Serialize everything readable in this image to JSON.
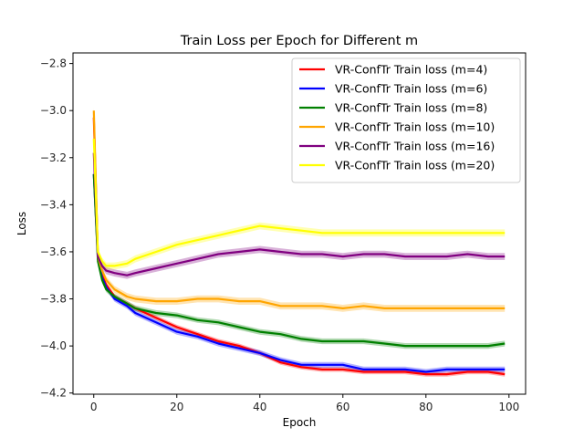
{
  "chart_data": {
    "type": "line",
    "title": "Train Loss per Epoch for Different m",
    "xlabel": "Epoch",
    "ylabel": "Loss",
    "xlim": [
      -5,
      104
    ],
    "ylim": [
      -4.205,
      -2.755
    ],
    "xticks": [
      0,
      20,
      40,
      60,
      80,
      100
    ],
    "yticks": [
      -4.2,
      -4.0,
      -3.8,
      -3.6,
      -3.4,
      -3.2,
      -3.0,
      -2.8
    ],
    "ytick_labels": [
      "−4.2",
      "−4.0",
      "−3.8",
      "−3.6",
      "−3.4",
      "−3.2",
      "−3.0",
      "−2.8"
    ],
    "grid": false,
    "legend_position": "top-right",
    "x": [
      0,
      1,
      2,
      3,
      5,
      8,
      10,
      15,
      20,
      25,
      30,
      35,
      40,
      45,
      50,
      55,
      60,
      65,
      70,
      75,
      80,
      85,
      90,
      95,
      99
    ],
    "series": [
      {
        "name": "VR-ConfTr Train loss (m=4)",
        "color": "#ff0000",
        "values": [
          -3.03,
          -3.62,
          -3.7,
          -3.74,
          -3.79,
          -3.82,
          -3.84,
          -3.88,
          -3.92,
          -3.95,
          -3.98,
          -4.0,
          -4.03,
          -4.07,
          -4.09,
          -4.1,
          -4.1,
          -4.11,
          -4.11,
          -4.11,
          -4.12,
          -4.12,
          -4.11,
          -4.11,
          -4.12
        ],
        "band": 0.01
      },
      {
        "name": "VR-ConfTr Train loss (m=6)",
        "color": "#0000ff",
        "values": [
          -3.27,
          -3.63,
          -3.71,
          -3.75,
          -3.8,
          -3.83,
          -3.86,
          -3.9,
          -3.94,
          -3.96,
          -3.99,
          -4.01,
          -4.03,
          -4.06,
          -4.08,
          -4.08,
          -4.08,
          -4.1,
          -4.1,
          -4.1,
          -4.11,
          -4.1,
          -4.1,
          -4.1,
          -4.1
        ],
        "band": 0.012
      },
      {
        "name": "VR-ConfTr Train loss (m=8)",
        "color": "#008000",
        "values": [
          -3.27,
          -3.64,
          -3.72,
          -3.76,
          -3.79,
          -3.82,
          -3.84,
          -3.86,
          -3.87,
          -3.89,
          -3.9,
          -3.92,
          -3.94,
          -3.95,
          -3.97,
          -3.98,
          -3.98,
          -3.98,
          -3.99,
          -4.0,
          -4.0,
          -4.0,
          -4.0,
          -4.0,
          -3.99
        ],
        "band": 0.012
      },
      {
        "name": "VR-ConfTr Train loss (m=10)",
        "color": "#ffa500",
        "values": [
          -3.0,
          -3.62,
          -3.68,
          -3.72,
          -3.76,
          -3.79,
          -3.8,
          -3.81,
          -3.81,
          -3.8,
          -3.8,
          -3.81,
          -3.81,
          -3.83,
          -3.83,
          -3.83,
          -3.84,
          -3.83,
          -3.84,
          -3.84,
          -3.84,
          -3.84,
          -3.84,
          -3.84,
          -3.84
        ],
        "band": 0.015
      },
      {
        "name": "VR-ConfTr Train loss (m=16)",
        "color": "#800080",
        "values": [
          -3.18,
          -3.62,
          -3.66,
          -3.68,
          -3.69,
          -3.7,
          -3.69,
          -3.67,
          -3.65,
          -3.63,
          -3.61,
          -3.6,
          -3.59,
          -3.6,
          -3.61,
          -3.61,
          -3.62,
          -3.61,
          -3.61,
          -3.62,
          -3.62,
          -3.62,
          -3.61,
          -3.62,
          -3.62
        ],
        "band": 0.015
      },
      {
        "name": "VR-ConfTr Train loss (m=20)",
        "color": "#ffff00",
        "values": [
          -3.12,
          -3.6,
          -3.64,
          -3.66,
          -3.66,
          -3.65,
          -3.63,
          -3.6,
          -3.57,
          -3.55,
          -3.53,
          -3.51,
          -3.49,
          -3.5,
          -3.51,
          -3.52,
          -3.52,
          -3.52,
          -3.52,
          -3.52,
          -3.52,
          -3.52,
          -3.52,
          -3.52,
          -3.52
        ],
        "band": 0.015
      }
    ]
  }
}
